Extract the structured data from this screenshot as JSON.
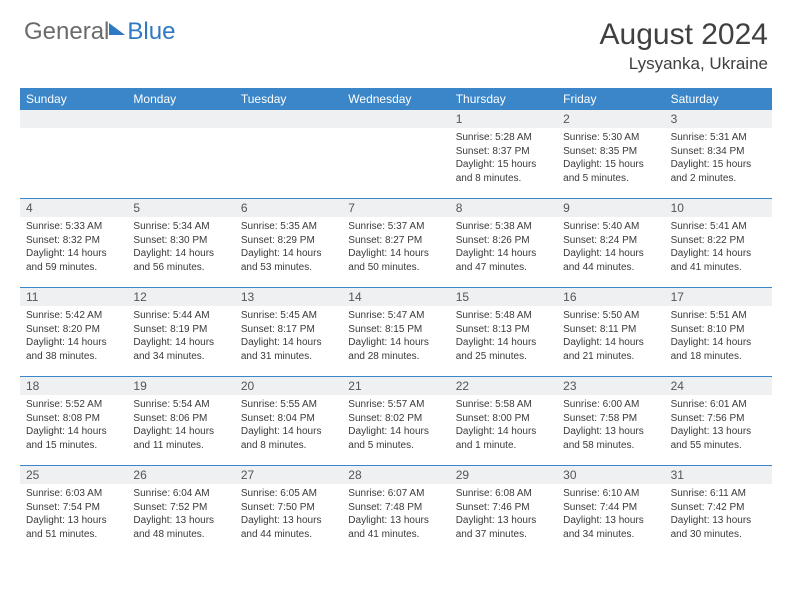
{
  "brand": {
    "general": "General",
    "blue": "Blue"
  },
  "title": "August 2024",
  "location": "Lysyanka, Ukraine",
  "colors": {
    "accent": "#3b86c8",
    "header_text": "#ffffff",
    "daynum_bg": "#eef0f2",
    "body_text": "#3a3a3a",
    "title_text": "#404040",
    "logo_gray": "#6b6b6b",
    "logo_blue": "#2f79c2"
  },
  "day_headers": [
    "Sunday",
    "Monday",
    "Tuesday",
    "Wednesday",
    "Thursday",
    "Friday",
    "Saturday"
  ],
  "weeks": [
    [
      {
        "empty": true
      },
      {
        "empty": true
      },
      {
        "empty": true
      },
      {
        "empty": true
      },
      {
        "d": "1",
        "sr": "Sunrise: 5:28 AM",
        "ss": "Sunset: 8:37 PM",
        "dl1": "Daylight: 15 hours",
        "dl2": "and 8 minutes."
      },
      {
        "d": "2",
        "sr": "Sunrise: 5:30 AM",
        "ss": "Sunset: 8:35 PM",
        "dl1": "Daylight: 15 hours",
        "dl2": "and 5 minutes."
      },
      {
        "d": "3",
        "sr": "Sunrise: 5:31 AM",
        "ss": "Sunset: 8:34 PM",
        "dl1": "Daylight: 15 hours",
        "dl2": "and 2 minutes."
      }
    ],
    [
      {
        "d": "4",
        "sr": "Sunrise: 5:33 AM",
        "ss": "Sunset: 8:32 PM",
        "dl1": "Daylight: 14 hours",
        "dl2": "and 59 minutes."
      },
      {
        "d": "5",
        "sr": "Sunrise: 5:34 AM",
        "ss": "Sunset: 8:30 PM",
        "dl1": "Daylight: 14 hours",
        "dl2": "and 56 minutes."
      },
      {
        "d": "6",
        "sr": "Sunrise: 5:35 AM",
        "ss": "Sunset: 8:29 PM",
        "dl1": "Daylight: 14 hours",
        "dl2": "and 53 minutes."
      },
      {
        "d": "7",
        "sr": "Sunrise: 5:37 AM",
        "ss": "Sunset: 8:27 PM",
        "dl1": "Daylight: 14 hours",
        "dl2": "and 50 minutes."
      },
      {
        "d": "8",
        "sr": "Sunrise: 5:38 AM",
        "ss": "Sunset: 8:26 PM",
        "dl1": "Daylight: 14 hours",
        "dl2": "and 47 minutes."
      },
      {
        "d": "9",
        "sr": "Sunrise: 5:40 AM",
        "ss": "Sunset: 8:24 PM",
        "dl1": "Daylight: 14 hours",
        "dl2": "and 44 minutes."
      },
      {
        "d": "10",
        "sr": "Sunrise: 5:41 AM",
        "ss": "Sunset: 8:22 PM",
        "dl1": "Daylight: 14 hours",
        "dl2": "and 41 minutes."
      }
    ],
    [
      {
        "d": "11",
        "sr": "Sunrise: 5:42 AM",
        "ss": "Sunset: 8:20 PM",
        "dl1": "Daylight: 14 hours",
        "dl2": "and 38 minutes."
      },
      {
        "d": "12",
        "sr": "Sunrise: 5:44 AM",
        "ss": "Sunset: 8:19 PM",
        "dl1": "Daylight: 14 hours",
        "dl2": "and 34 minutes."
      },
      {
        "d": "13",
        "sr": "Sunrise: 5:45 AM",
        "ss": "Sunset: 8:17 PM",
        "dl1": "Daylight: 14 hours",
        "dl2": "and 31 minutes."
      },
      {
        "d": "14",
        "sr": "Sunrise: 5:47 AM",
        "ss": "Sunset: 8:15 PM",
        "dl1": "Daylight: 14 hours",
        "dl2": "and 28 minutes."
      },
      {
        "d": "15",
        "sr": "Sunrise: 5:48 AM",
        "ss": "Sunset: 8:13 PM",
        "dl1": "Daylight: 14 hours",
        "dl2": "and 25 minutes."
      },
      {
        "d": "16",
        "sr": "Sunrise: 5:50 AM",
        "ss": "Sunset: 8:11 PM",
        "dl1": "Daylight: 14 hours",
        "dl2": "and 21 minutes."
      },
      {
        "d": "17",
        "sr": "Sunrise: 5:51 AM",
        "ss": "Sunset: 8:10 PM",
        "dl1": "Daylight: 14 hours",
        "dl2": "and 18 minutes."
      }
    ],
    [
      {
        "d": "18",
        "sr": "Sunrise: 5:52 AM",
        "ss": "Sunset: 8:08 PM",
        "dl1": "Daylight: 14 hours",
        "dl2": "and 15 minutes."
      },
      {
        "d": "19",
        "sr": "Sunrise: 5:54 AM",
        "ss": "Sunset: 8:06 PM",
        "dl1": "Daylight: 14 hours",
        "dl2": "and 11 minutes."
      },
      {
        "d": "20",
        "sr": "Sunrise: 5:55 AM",
        "ss": "Sunset: 8:04 PM",
        "dl1": "Daylight: 14 hours",
        "dl2": "and 8 minutes."
      },
      {
        "d": "21",
        "sr": "Sunrise: 5:57 AM",
        "ss": "Sunset: 8:02 PM",
        "dl1": "Daylight: 14 hours",
        "dl2": "and 5 minutes."
      },
      {
        "d": "22",
        "sr": "Sunrise: 5:58 AM",
        "ss": "Sunset: 8:00 PM",
        "dl1": "Daylight: 14 hours",
        "dl2": "and 1 minute."
      },
      {
        "d": "23",
        "sr": "Sunrise: 6:00 AM",
        "ss": "Sunset: 7:58 PM",
        "dl1": "Daylight: 13 hours",
        "dl2": "and 58 minutes."
      },
      {
        "d": "24",
        "sr": "Sunrise: 6:01 AM",
        "ss": "Sunset: 7:56 PM",
        "dl1": "Daylight: 13 hours",
        "dl2": "and 55 minutes."
      }
    ],
    [
      {
        "d": "25",
        "sr": "Sunrise: 6:03 AM",
        "ss": "Sunset: 7:54 PM",
        "dl1": "Daylight: 13 hours",
        "dl2": "and 51 minutes."
      },
      {
        "d": "26",
        "sr": "Sunrise: 6:04 AM",
        "ss": "Sunset: 7:52 PM",
        "dl1": "Daylight: 13 hours",
        "dl2": "and 48 minutes."
      },
      {
        "d": "27",
        "sr": "Sunrise: 6:05 AM",
        "ss": "Sunset: 7:50 PM",
        "dl1": "Daylight: 13 hours",
        "dl2": "and 44 minutes."
      },
      {
        "d": "28",
        "sr": "Sunrise: 6:07 AM",
        "ss": "Sunset: 7:48 PM",
        "dl1": "Daylight: 13 hours",
        "dl2": "and 41 minutes."
      },
      {
        "d": "29",
        "sr": "Sunrise: 6:08 AM",
        "ss": "Sunset: 7:46 PM",
        "dl1": "Daylight: 13 hours",
        "dl2": "and 37 minutes."
      },
      {
        "d": "30",
        "sr": "Sunrise: 6:10 AM",
        "ss": "Sunset: 7:44 PM",
        "dl1": "Daylight: 13 hours",
        "dl2": "and 34 minutes."
      },
      {
        "d": "31",
        "sr": "Sunrise: 6:11 AM",
        "ss": "Sunset: 7:42 PM",
        "dl1": "Daylight: 13 hours",
        "dl2": "and 30 minutes."
      }
    ]
  ]
}
